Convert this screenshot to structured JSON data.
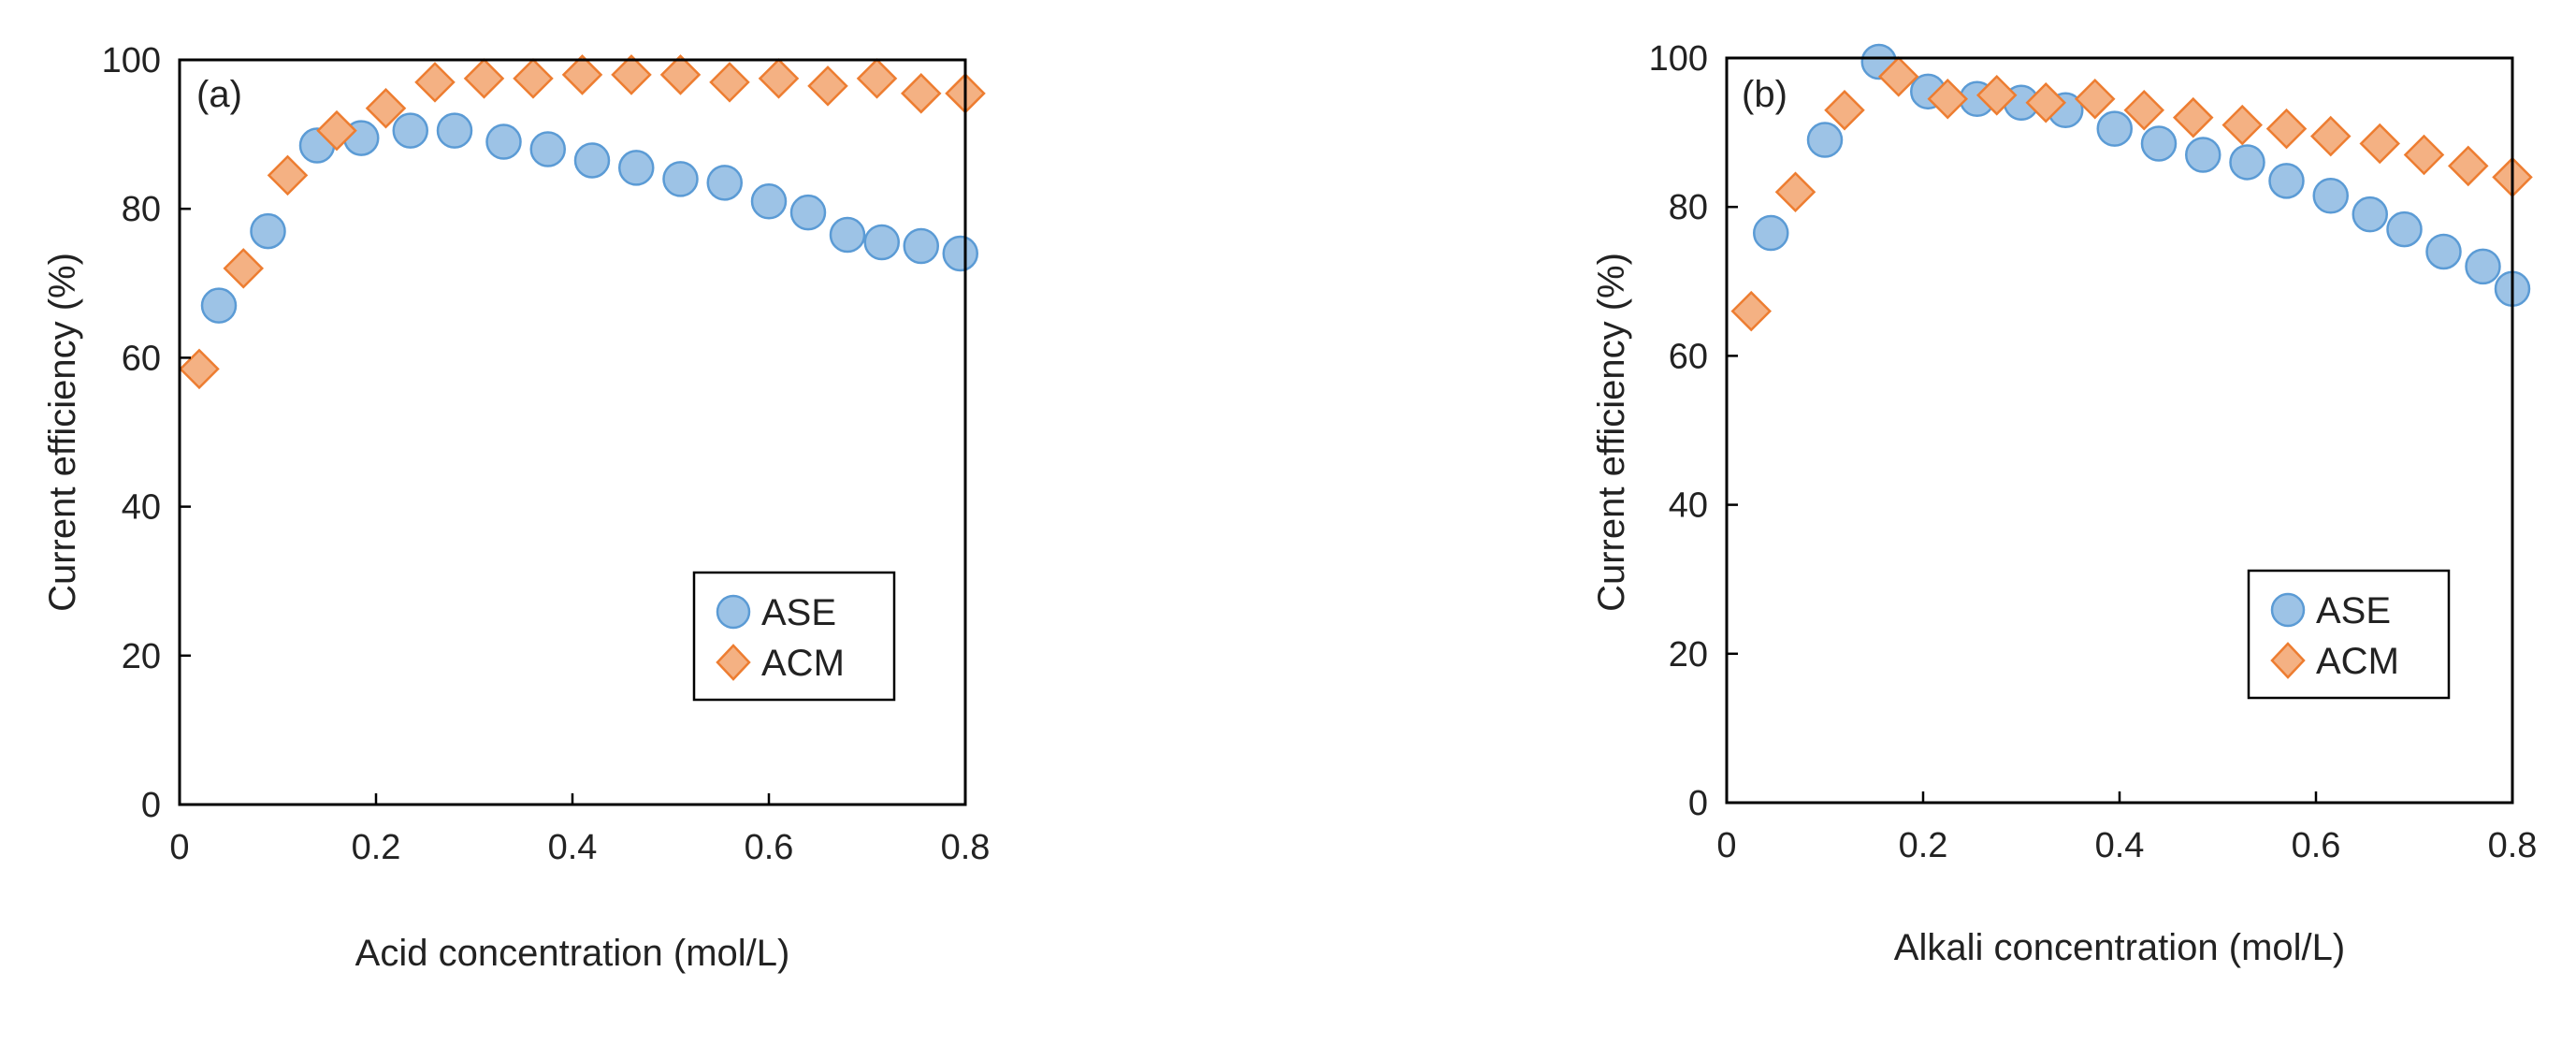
{
  "chart_data": [
    {
      "type": "scatter",
      "panel_label": "(a)",
      "title": "",
      "xlabel": "Acid concentration (mol/L)",
      "ylabel": "Current efficiency (%)",
      "xlim": [
        0,
        0.8
      ],
      "ylim": [
        0,
        100
      ],
      "xticks": [
        0,
        0.2,
        0.4,
        0.6,
        0.8
      ],
      "xtick_labels": [
        "0",
        "0.2",
        "0.4",
        "0.6",
        "0.8"
      ],
      "yticks": [
        0,
        20,
        40,
        60,
        80,
        100
      ],
      "ytick_labels": [
        "0",
        "20",
        "40",
        "60",
        "80",
        "100"
      ],
      "grid": false,
      "legend_position": "lower-right",
      "series": [
        {
          "name": "ASE",
          "marker": "circle",
          "color": "#9dc3e6",
          "edge_color": "#5b9bd5",
          "points": [
            [
              0.04,
              67
            ],
            [
              0.09,
              77
            ],
            [
              0.14,
              88.5
            ],
            [
              0.185,
              89.5
            ],
            [
              0.235,
              90.5
            ],
            [
              0.28,
              90.5
            ],
            [
              0.33,
              89
            ],
            [
              0.375,
              88
            ],
            [
              0.42,
              86.5
            ],
            [
              0.465,
              85.5
            ],
            [
              0.51,
              84
            ],
            [
              0.555,
              83.5
            ],
            [
              0.6,
              81
            ],
            [
              0.64,
              79.5
            ],
            [
              0.68,
              76.5
            ],
            [
              0.715,
              75.5
            ],
            [
              0.755,
              75
            ],
            [
              0.795,
              74
            ]
          ]
        },
        {
          "name": "ACM",
          "marker": "diamond",
          "color": "#f4b183",
          "edge_color": "#ed7d31",
          "points": [
            [
              0.02,
              58.5
            ],
            [
              0.065,
              72
            ],
            [
              0.11,
              84.5
            ],
            [
              0.16,
              90.5
            ],
            [
              0.21,
              93.5
            ],
            [
              0.26,
              97
            ],
            [
              0.31,
              97.5
            ],
            [
              0.36,
              97.5
            ],
            [
              0.41,
              98
            ],
            [
              0.46,
              98
            ],
            [
              0.51,
              98
            ],
            [
              0.56,
              97
            ],
            [
              0.61,
              97.5
            ],
            [
              0.66,
              96.5
            ],
            [
              0.71,
              97.5
            ],
            [
              0.755,
              95.5
            ],
            [
              0.8,
              95.5
            ]
          ]
        }
      ]
    },
    {
      "type": "scatter",
      "panel_label": "(b)",
      "title": "",
      "xlabel": "Alkali concentration (mol/L)",
      "ylabel": "Current efficiency (%)",
      "xlim": [
        0,
        0.8
      ],
      "ylim": [
        0,
        100
      ],
      "xticks": [
        0,
        0.2,
        0.4,
        0.6,
        0.8
      ],
      "xtick_labels": [
        "0",
        "0.2",
        "0.4",
        "0.6",
        "0.8"
      ],
      "yticks": [
        0,
        20,
        40,
        60,
        80,
        100
      ],
      "ytick_labels": [
        "0",
        "20",
        "40",
        "60",
        "80",
        "100"
      ],
      "grid": false,
      "legend_position": "lower-right",
      "series": [
        {
          "name": "ASE",
          "marker": "circle",
          "color": "#9dc3e6",
          "edge_color": "#5b9bd5",
          "points": [
            [
              0.045,
              76.5
            ],
            [
              0.1,
              89
            ],
            [
              0.155,
              99.5
            ],
            [
              0.205,
              95.5
            ],
            [
              0.255,
              94.5
            ],
            [
              0.3,
              94
            ],
            [
              0.345,
              93
            ],
            [
              0.395,
              90.5
            ],
            [
              0.44,
              88.5
            ],
            [
              0.485,
              87
            ],
            [
              0.53,
              86
            ],
            [
              0.57,
              83.5
            ],
            [
              0.615,
              81.5
            ],
            [
              0.655,
              79
            ],
            [
              0.69,
              77
            ],
            [
              0.73,
              74
            ],
            [
              0.77,
              72
            ],
            [
              0.8,
              69
            ]
          ]
        },
        {
          "name": "ACM",
          "marker": "diamond",
          "color": "#f4b183",
          "edge_color": "#ed7d31",
          "points": [
            [
              0.025,
              66
            ],
            [
              0.07,
              82
            ],
            [
              0.12,
              93
            ],
            [
              0.175,
              97.5
            ],
            [
              0.225,
              94.5
            ],
            [
              0.275,
              95
            ],
            [
              0.325,
              94
            ],
            [
              0.375,
              94.5
            ],
            [
              0.425,
              93
            ],
            [
              0.475,
              92
            ],
            [
              0.525,
              91
            ],
            [
              0.57,
              90.5
            ],
            [
              0.615,
              89.5
            ],
            [
              0.665,
              88.5
            ],
            [
              0.71,
              87
            ],
            [
              0.755,
              85.5
            ],
            [
              0.8,
              84
            ]
          ]
        }
      ]
    }
  ]
}
